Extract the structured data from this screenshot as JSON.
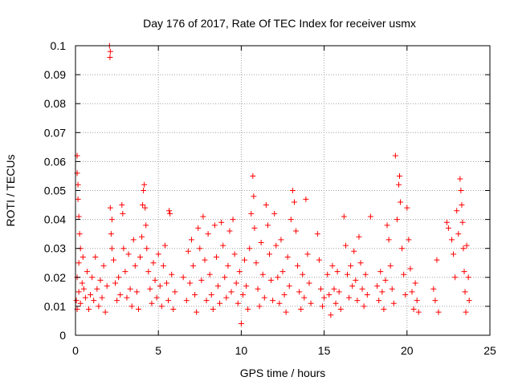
{
  "chart_data": {
    "type": "scatter",
    "title": "Day 176 of 2017, Rate Of TEC Index for receiver usmx",
    "xlabel": "GPS time / hours",
    "ylabel": "ROTI / TECUs",
    "xlim": [
      0,
      25
    ],
    "ylim": [
      0,
      0.1
    ],
    "x_ticks": [
      0,
      5,
      10,
      15,
      20,
      25
    ],
    "x_tick_labels": [
      "0",
      "5",
      "10",
      "15",
      "20",
      "25"
    ],
    "y_ticks": [
      0,
      0.01,
      0.02,
      0.03,
      0.04,
      0.05,
      0.06,
      0.07,
      0.08,
      0.09,
      0.1
    ],
    "y_tick_labels": [
      "0",
      "0.01",
      "0.02",
      "0.03",
      "0.04",
      "0.05",
      "0.06",
      "0.07",
      "0.08",
      "0.09",
      "0.1"
    ],
    "grid": true,
    "legend": "none",
    "marker": "plus",
    "marker_color": "#ff0000",
    "series": [
      {
        "points": [
          [
            0.1,
            0.062
          ],
          [
            0.1,
            0.056
          ],
          [
            0.15,
            0.052
          ],
          [
            0.15,
            0.047
          ],
          [
            0.2,
            0.041
          ],
          [
            0.25,
            0.035
          ],
          [
            0.3,
            0.03
          ],
          [
            0.2,
            0.025
          ],
          [
            0.1,
            0.02
          ],
          [
            0.05,
            0.012
          ],
          [
            0.1,
            0.009
          ],
          [
            0.2,
            0.015
          ],
          [
            0.3,
            0.011
          ],
          [
            0.4,
            0.018
          ],
          [
            0.45,
            0.027
          ],
          [
            0.5,
            0.016
          ],
          [
            0.6,
            0.013
          ],
          [
            0.7,
            0.022
          ],
          [
            0.8,
            0.009
          ],
          [
            0.9,
            0.014
          ],
          [
            1.0,
            0.02
          ],
          [
            1.1,
            0.012
          ],
          [
            1.2,
            0.027
          ],
          [
            1.3,
            0.016
          ],
          [
            1.4,
            0.01
          ],
          [
            1.5,
            0.019
          ],
          [
            1.6,
            0.013
          ],
          [
            1.7,
            0.024
          ],
          [
            1.8,
            0.008
          ],
          [
            1.9,
            0.017
          ],
          [
            2.05,
            0.1
          ],
          [
            2.1,
            0.098
          ],
          [
            2.08,
            0.096
          ],
          [
            2.1,
            0.044
          ],
          [
            2.2,
            0.04
          ],
          [
            2.15,
            0.035
          ],
          [
            2.2,
            0.03
          ],
          [
            2.3,
            0.026
          ],
          [
            2.4,
            0.018
          ],
          [
            2.5,
            0.012
          ],
          [
            2.6,
            0.02
          ],
          [
            2.7,
            0.014
          ],
          [
            2.8,
            0.045
          ],
          [
            2.85,
            0.042
          ],
          [
            2.9,
            0.03
          ],
          [
            3.0,
            0.022
          ],
          [
            3.1,
            0.013
          ],
          [
            3.2,
            0.028
          ],
          [
            3.3,
            0.016
          ],
          [
            3.4,
            0.01
          ],
          [
            3.5,
            0.033
          ],
          [
            3.6,
            0.024
          ],
          [
            3.7,
            0.015
          ],
          [
            3.8,
            0.009
          ],
          [
            3.9,
            0.027
          ],
          [
            4.0,
            0.034
          ],
          [
            4.05,
            0.045
          ],
          [
            4.1,
            0.05
          ],
          [
            4.15,
            0.052
          ],
          [
            4.2,
            0.044
          ],
          [
            4.25,
            0.038
          ],
          [
            4.3,
            0.03
          ],
          [
            4.4,
            0.022
          ],
          [
            4.5,
            0.016
          ],
          [
            4.6,
            0.011
          ],
          [
            4.7,
            0.025
          ],
          [
            4.8,
            0.019
          ],
          [
            4.9,
            0.013
          ],
          [
            5.0,
            0.028
          ],
          [
            5.1,
            0.017
          ],
          [
            5.2,
            0.01
          ],
          [
            5.3,
            0.024
          ],
          [
            5.4,
            0.031
          ],
          [
            5.5,
            0.018
          ],
          [
            5.6,
            0.012
          ],
          [
            5.65,
            0.043
          ],
          [
            5.7,
            0.042
          ],
          [
            5.8,
            0.021
          ],
          [
            5.9,
            0.009
          ],
          [
            6.0,
            0.015
          ],
          [
            6.5,
            0.02
          ],
          [
            6.7,
            0.012
          ],
          [
            6.8,
            0.029
          ],
          [
            6.9,
            0.018
          ],
          [
            7.0,
            0.033
          ],
          [
            7.1,
            0.024
          ],
          [
            7.2,
            0.014
          ],
          [
            7.3,
            0.008
          ],
          [
            7.4,
            0.037
          ],
          [
            7.5,
            0.03
          ],
          [
            7.6,
            0.019
          ],
          [
            7.7,
            0.041
          ],
          [
            7.8,
            0.026
          ],
          [
            7.9,
            0.012
          ],
          [
            8.0,
            0.035
          ],
          [
            8.1,
            0.021
          ],
          [
            8.2,
            0.014
          ],
          [
            8.3,
            0.009
          ],
          [
            8.4,
            0.038
          ],
          [
            8.5,
            0.027
          ],
          [
            8.6,
            0.017
          ],
          [
            8.7,
            0.011
          ],
          [
            8.8,
            0.039
          ],
          [
            8.9,
            0.031
          ],
          [
            9.0,
            0.02
          ],
          [
            9.1,
            0.013
          ],
          [
            9.2,
            0.024
          ],
          [
            9.3,
            0.036
          ],
          [
            9.4,
            0.015
          ],
          [
            9.5,
            0.04
          ],
          [
            9.6,
            0.028
          ],
          [
            9.7,
            0.018
          ],
          [
            9.8,
            0.011
          ],
          [
            9.9,
            0.022
          ],
          [
            10.0,
            0.004
          ],
          [
            10.1,
            0.014
          ],
          [
            10.2,
            0.026
          ],
          [
            10.3,
            0.017
          ],
          [
            10.4,
            0.009
          ],
          [
            10.5,
            0.03
          ],
          [
            10.6,
            0.042
          ],
          [
            10.7,
            0.055
          ],
          [
            10.75,
            0.048
          ],
          [
            10.8,
            0.037
          ],
          [
            10.9,
            0.025
          ],
          [
            11.0,
            0.016
          ],
          [
            11.1,
            0.01
          ],
          [
            11.2,
            0.032
          ],
          [
            11.3,
            0.021
          ],
          [
            11.4,
            0.013
          ],
          [
            11.5,
            0.045
          ],
          [
            11.6,
            0.038
          ],
          [
            11.7,
            0.028
          ],
          [
            11.8,
            0.019
          ],
          [
            11.9,
            0.012
          ],
          [
            12.0,
            0.042
          ],
          [
            12.1,
            0.031
          ],
          [
            12.2,
            0.02
          ],
          [
            12.3,
            0.011
          ],
          [
            12.4,
            0.033
          ],
          [
            12.5,
            0.022
          ],
          [
            12.6,
            0.014
          ],
          [
            12.7,
            0.008
          ],
          [
            12.8,
            0.027
          ],
          [
            12.9,
            0.017
          ],
          [
            13.0,
            0.04
          ],
          [
            13.1,
            0.05
          ],
          [
            13.2,
            0.046
          ],
          [
            13.3,
            0.036
          ],
          [
            13.4,
            0.024
          ],
          [
            13.5,
            0.015
          ],
          [
            13.6,
            0.009
          ],
          [
            13.7,
            0.021
          ],
          [
            13.8,
            0.013
          ],
          [
            13.9,
            0.047
          ],
          [
            14.0,
            0.028
          ],
          [
            14.1,
            0.018
          ],
          [
            14.2,
            0.011
          ],
          [
            14.6,
            0.035
          ],
          [
            14.7,
            0.026
          ],
          [
            14.8,
            0.016
          ],
          [
            14.9,
            0.01
          ],
          [
            15.0,
            0.013
          ],
          [
            15.2,
            0.021
          ],
          [
            15.3,
            0.014
          ],
          [
            15.4,
            0.007
          ],
          [
            15.5,
            0.024
          ],
          [
            15.6,
            0.016
          ],
          [
            15.7,
            0.011
          ],
          [
            15.8,
            0.022
          ],
          [
            15.9,
            0.015
          ],
          [
            16.0,
            0.009
          ],
          [
            16.2,
            0.041
          ],
          [
            16.3,
            0.031
          ],
          [
            16.4,
            0.021
          ],
          [
            16.5,
            0.013
          ],
          [
            16.6,
            0.024
          ],
          [
            16.7,
            0.017
          ],
          [
            16.8,
            0.029
          ],
          [
            16.9,
            0.019
          ],
          [
            17.0,
            0.012
          ],
          [
            17.1,
            0.034
          ],
          [
            17.2,
            0.025
          ],
          [
            17.3,
            0.016
          ],
          [
            17.4,
            0.01
          ],
          [
            17.5,
            0.021
          ],
          [
            17.6,
            0.014
          ],
          [
            17.8,
            0.041
          ],
          [
            18.2,
            0.017
          ],
          [
            18.3,
            0.012
          ],
          [
            18.4,
            0.022
          ],
          [
            18.5,
            0.015
          ],
          [
            18.6,
            0.009
          ],
          [
            18.7,
            0.019
          ],
          [
            18.8,
            0.038
          ],
          [
            18.9,
            0.033
          ],
          [
            19.0,
            0.024
          ],
          [
            19.1,
            0.016
          ],
          [
            19.2,
            0.011
          ],
          [
            19.3,
            0.062
          ],
          [
            19.4,
            0.04
          ],
          [
            19.5,
            0.052
          ],
          [
            19.55,
            0.055
          ],
          [
            19.6,
            0.046
          ],
          [
            19.7,
            0.03
          ],
          [
            19.8,
            0.021
          ],
          [
            19.9,
            0.014
          ],
          [
            20.0,
            0.044
          ],
          [
            20.1,
            0.033
          ],
          [
            20.2,
            0.023
          ],
          [
            20.3,
            0.015
          ],
          [
            20.4,
            0.009
          ],
          [
            20.5,
            0.018
          ],
          [
            20.6,
            0.012
          ],
          [
            20.7,
            0.008
          ],
          [
            21.6,
            0.016
          ],
          [
            21.7,
            0.012
          ],
          [
            21.8,
            0.026
          ],
          [
            21.9,
            0.008
          ],
          [
            22.4,
            0.039
          ],
          [
            22.5,
            0.037
          ],
          [
            22.7,
            0.033
          ],
          [
            22.8,
            0.028
          ],
          [
            22.9,
            0.02
          ],
          [
            23.0,
            0.043
          ],
          [
            23.1,
            0.035
          ],
          [
            23.2,
            0.054
          ],
          [
            23.25,
            0.05
          ],
          [
            23.3,
            0.045
          ],
          [
            23.35,
            0.039
          ],
          [
            23.4,
            0.03
          ],
          [
            23.45,
            0.022
          ],
          [
            23.5,
            0.015
          ],
          [
            23.55,
            0.008
          ],
          [
            23.6,
            0.031
          ],
          [
            23.7,
            0.02
          ],
          [
            23.75,
            0.012
          ]
        ]
      }
    ]
  }
}
